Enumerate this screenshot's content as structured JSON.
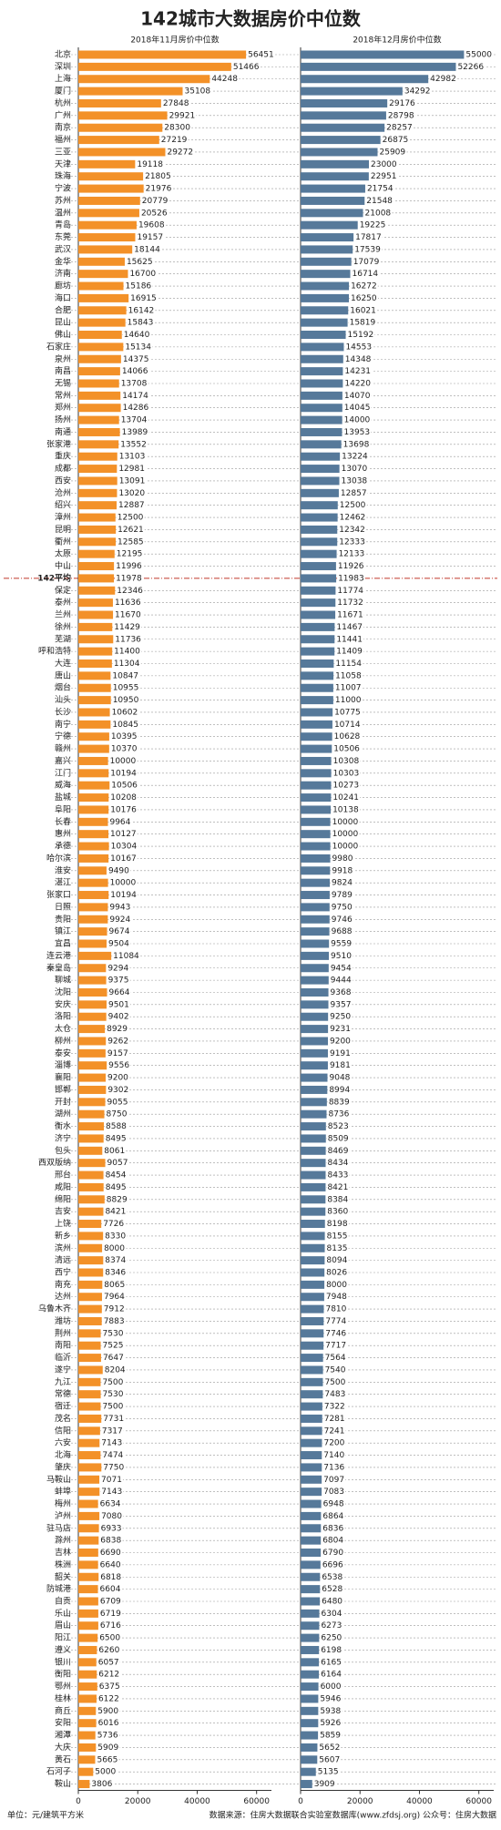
{
  "chart_data": {
    "type": "bar",
    "orientation": "horizontal",
    "title": "142城市大数据房价中位数",
    "categories": [
      "北京",
      "深圳",
      "上海",
      "厦门",
      "杭州",
      "广州",
      "南京",
      "福州",
      "三亚",
      "天津",
      "珠海",
      "宁波",
      "苏州",
      "温州",
      "青岛",
      "东莞",
      "武汉",
      "金华",
      "济南",
      "廊坊",
      "海口",
      "合肥",
      "昆山",
      "佛山",
      "石家庄",
      "泉州",
      "南昌",
      "无锡",
      "常州",
      "郑州",
      "扬州",
      "南通",
      "张家港",
      "重庆",
      "成都",
      "西安",
      "沧州",
      "绍兴",
      "漳州",
      "昆明",
      "衢州",
      "太原",
      "中山",
      "142平均",
      "保定",
      "泰州",
      "兰州",
      "徐州",
      "芜湖",
      "呼和浩特",
      "大连",
      "唐山",
      "烟台",
      "汕头",
      "长沙",
      "南宁",
      "宁德",
      "赣州",
      "嘉兴",
      "江门",
      "威海",
      "盐城",
      "阜阳",
      "长春",
      "惠州",
      "承德",
      "哈尔滨",
      "淮安",
      "湛江",
      "张家口",
      "日照",
      "贵阳",
      "镇江",
      "宜昌",
      "连云港",
      "秦皇岛",
      "聊城",
      "沈阳",
      "安庆",
      "洛阳",
      "太仓",
      "柳州",
      "泰安",
      "淄博",
      "襄阳",
      "邯郸",
      "开封",
      "湖州",
      "衡水",
      "济宁",
      "包头",
      "西双版纳",
      "邢台",
      "咸阳",
      "绵阳",
      "吉安",
      "上饶",
      "新乡",
      "滨州",
      "清远",
      "西宁",
      "南充",
      "达州",
      "乌鲁木齐",
      "潍坊",
      "荆州",
      "南阳",
      "临沂",
      "遂宁",
      "九江",
      "常德",
      "宿迁",
      "茂名",
      "信阳",
      "六安",
      "北海",
      "肇庆",
      "马鞍山",
      "蚌埠",
      "梅州",
      "泸州",
      "驻马店",
      "滁州",
      "吉林",
      "株洲",
      "韶关",
      "防城港",
      "自贡",
      "乐山",
      "眉山",
      "阳江",
      "遵义",
      "银川",
      "衡阳",
      "鄂州",
      "桂林",
      "商丘",
      "安阳",
      "湘潭",
      "大庆",
      "黄石",
      "石河子",
      "鞍山"
    ],
    "series": [
      {
        "name": "2018年11月房价中位数",
        "color": "#f39128",
        "values": [
          56451,
          51466,
          44248,
          35108,
          27848,
          29921,
          28300,
          27219,
          29272,
          19118,
          21805,
          21976,
          20779,
          20526,
          19608,
          19157,
          18144,
          15625,
          16700,
          15186,
          16915,
          16142,
          15843,
          14640,
          15134,
          14375,
          14066,
          13708,
          14174,
          14286,
          13704,
          13989,
          13552,
          13103,
          12981,
          13091,
          13020,
          12887,
          12500,
          12621,
          12585,
          12195,
          11996,
          11978,
          12346,
          11636,
          11670,
          11429,
          11736,
          11400,
          11304,
          10847,
          10955,
          10950,
          10602,
          10845,
          10395,
          10370,
          10000,
          10194,
          10506,
          10208,
          10176,
          9964,
          10127,
          10304,
          10167,
          9490,
          10000,
          10194,
          9943,
          9924,
          9674,
          9504,
          11084,
          9294,
          9375,
          9664,
          9501,
          9402,
          8929,
          9262,
          9157,
          9556,
          9200,
          9302,
          9055,
          8750,
          8588,
          8495,
          8061,
          9057,
          8454,
          8495,
          8829,
          8421,
          7726,
          8330,
          8000,
          8374,
          8346,
          8065,
          7964,
          7912,
          7883,
          7530,
          7525,
          7647,
          8204,
          7500,
          7530,
          7500,
          7731,
          7317,
          7143,
          7474,
          7750,
          7071,
          7143,
          6634,
          7080,
          6933,
          6838,
          6690,
          6640,
          6818,
          6604,
          6709,
          6719,
          6716,
          6500,
          6260,
          6057,
          6212,
          6375,
          6122,
          5900,
          6016,
          5736,
          5909,
          5665,
          5000,
          3806
        ]
      },
      {
        "name": "2018年12月房价中位数",
        "color": "#56799a",
        "values": [
          55000,
          52266,
          42982,
          34292,
          29176,
          28798,
          28257,
          26875,
          25909,
          23000,
          22951,
          21754,
          21548,
          21008,
          19225,
          17817,
          17539,
          17079,
          16714,
          16272,
          16250,
          16021,
          15819,
          15192,
          14553,
          14348,
          14231,
          14220,
          14070,
          14045,
          14000,
          13953,
          13698,
          13224,
          13070,
          13038,
          12857,
          12500,
          12462,
          12342,
          12333,
          12133,
          11926,
          11983,
          11774,
          11732,
          11671,
          11467,
          11441,
          11409,
          11154,
          11058,
          11007,
          11000,
          10775,
          10714,
          10628,
          10506,
          10308,
          10303,
          10273,
          10241,
          10138,
          10000,
          10000,
          10000,
          9980,
          9918,
          9824,
          9789,
          9750,
          9746,
          9688,
          9559,
          9510,
          9454,
          9444,
          9368,
          9357,
          9250,
          9231,
          9200,
          9191,
          9181,
          9048,
          8994,
          8839,
          8736,
          8523,
          8509,
          8469,
          8434,
          8433,
          8421,
          8384,
          8360,
          8198,
          8155,
          8135,
          8094,
          8026,
          8000,
          7948,
          7810,
          7774,
          7746,
          7717,
          7564,
          7540,
          7500,
          7483,
          7322,
          7281,
          7241,
          7200,
          7140,
          7136,
          7097,
          7083,
          6948,
          6864,
          6836,
          6804,
          6790,
          6696,
          6538,
          6528,
          6480,
          6304,
          6273,
          6250,
          6198,
          6165,
          6164,
          6000,
          5946,
          5938,
          5926,
          5859,
          5652,
          5607,
          5135,
          3909
        ]
      }
    ],
    "highlight": 43,
    "xlim": [
      0,
      65000
    ],
    "xticks": [
      0,
      20000,
      40000,
      60000
    ],
    "grid": true,
    "unit_note": "单位：元/建筑平方米",
    "source_note": "数据来源：住房大数据联合实验室数据库(www.zfdsj.org) 公众号：住房大数据"
  }
}
